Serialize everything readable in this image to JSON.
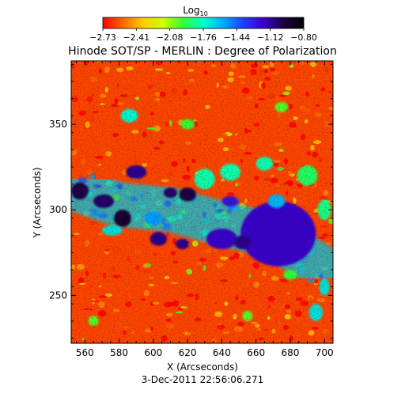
{
  "chart_data": {
    "type": "heatmap",
    "title": "Hinode SOT/SP - MERLIN : Degree of Polarization",
    "colorbar": {
      "label_base": "Log",
      "label_sub": "10",
      "ticks": [
        "−2.73",
        "−2.41",
        "−2.08",
        "−1.76",
        "−1.44",
        "−1.12",
        "−0.80"
      ],
      "min": -2.73,
      "max": -0.8,
      "colormap": [
        "#ff0000",
        "#ff6600",
        "#ffcc00",
        "#ccff00",
        "#33ff33",
        "#00ffcc",
        "#00aaff",
        "#1f3cff",
        "#3a00c8",
        "#1a0040",
        "#000000"
      ]
    },
    "xlabel": "X (Arcseconds)",
    "ylabel": "Y (Arcseconds)",
    "xlim": [
      552,
      705
    ],
    "ylim": [
      222,
      387
    ],
    "xticks": [
      560,
      580,
      600,
      620,
      640,
      660,
      680,
      700
    ],
    "yticks": [
      250,
      300,
      350
    ],
    "features": [
      {
        "kind": "band",
        "points": [
          [
            552,
            313
          ],
          [
            580,
            303
          ],
          [
            610,
            300
          ],
          [
            640,
            292
          ],
          [
            670,
            285
          ],
          [
            700,
            265
          ]
        ],
        "width": 26,
        "value": -1.65
      },
      {
        "kind": "spot",
        "x": 673,
        "y": 286,
        "rx": 13,
        "ry": 11,
        "value": -0.82
      },
      {
        "kind": "spot",
        "x": 673,
        "y": 286,
        "rx": 22,
        "ry": 19,
        "value": -1.2
      },
      {
        "kind": "spot",
        "x": 557,
        "y": 311,
        "rx": 5,
        "ry": 5,
        "value": -1.0
      },
      {
        "kind": "spot",
        "x": 571,
        "y": 305,
        "rx": 6,
        "ry": 4,
        "value": -1.05
      },
      {
        "kind": "spot",
        "x": 582,
        "y": 295,
        "rx": 5,
        "ry": 5,
        "value": -0.95
      },
      {
        "kind": "spot",
        "x": 590,
        "y": 322,
        "rx": 6,
        "ry": 4,
        "value": -1.1
      },
      {
        "kind": "spot",
        "x": 610,
        "y": 310,
        "rx": 4,
        "ry": 3,
        "value": -1.05
      },
      {
        "kind": "spot",
        "x": 620,
        "y": 309,
        "rx": 5,
        "ry": 4,
        "value": -1.0
      },
      {
        "kind": "spot",
        "x": 603,
        "y": 283,
        "rx": 5,
        "ry": 4,
        "value": -1.1
      },
      {
        "kind": "spot",
        "x": 617,
        "y": 280,
        "rx": 4,
        "ry": 3,
        "value": -1.1
      },
      {
        "kind": "spot",
        "x": 640,
        "y": 283,
        "rx": 9,
        "ry": 6,
        "value": -1.2
      },
      {
        "kind": "spot",
        "x": 652,
        "y": 281,
        "rx": 5,
        "ry": 4,
        "value": -1.1
      },
      {
        "kind": "spot",
        "x": 645,
        "y": 305,
        "rx": 5,
        "ry": 3,
        "value": -1.25
      },
      {
        "kind": "spot",
        "x": 576,
        "y": 288,
        "rx": 6,
        "ry": 3,
        "value": -1.7
      },
      {
        "kind": "spot",
        "x": 600,
        "y": 295,
        "rx": 5,
        "ry": 4,
        "value": -1.55
      },
      {
        "kind": "spot",
        "x": 630,
        "y": 318,
        "rx": 6,
        "ry": 6,
        "value": -1.8
      },
      {
        "kind": "spot",
        "x": 645,
        "y": 322,
        "rx": 6,
        "ry": 5,
        "value": -1.8
      },
      {
        "kind": "spot",
        "x": 665,
        "y": 327,
        "rx": 5,
        "ry": 4,
        "value": -1.8
      },
      {
        "kind": "spot",
        "x": 690,
        "y": 320,
        "rx": 6,
        "ry": 6,
        "value": -1.9
      },
      {
        "kind": "spot",
        "x": 700,
        "y": 300,
        "rx": 4,
        "ry": 6,
        "value": -1.85
      },
      {
        "kind": "spot",
        "x": 672,
        "y": 305,
        "rx": 5,
        "ry": 4,
        "value": -1.6
      },
      {
        "kind": "spot",
        "x": 586,
        "y": 355,
        "rx": 5,
        "ry": 4,
        "value": -1.75
      },
      {
        "kind": "spot",
        "x": 620,
        "y": 350,
        "rx": 4,
        "ry": 3,
        "value": -1.95
      },
      {
        "kind": "spot",
        "x": 675,
        "y": 360,
        "rx": 4,
        "ry": 3,
        "value": -2.0
      },
      {
        "kind": "spot",
        "x": 700,
        "y": 255,
        "rx": 3,
        "ry": 5,
        "value": -1.7
      },
      {
        "kind": "spot",
        "x": 695,
        "y": 240,
        "rx": 4,
        "ry": 5,
        "value": -1.7
      },
      {
        "kind": "spot",
        "x": 680,
        "y": 262,
        "rx": 4,
        "ry": 3,
        "value": -1.95
      },
      {
        "kind": "spot",
        "x": 565,
        "y": 235,
        "rx": 3,
        "ry": 3,
        "value": -2.0
      },
      {
        "kind": "spot",
        "x": 655,
        "y": 238,
        "rx": 3,
        "ry": 3,
        "value": -2.0
      }
    ],
    "background_value": -2.6,
    "timestamp": "3-Dec-2011 22:56:06.271"
  }
}
